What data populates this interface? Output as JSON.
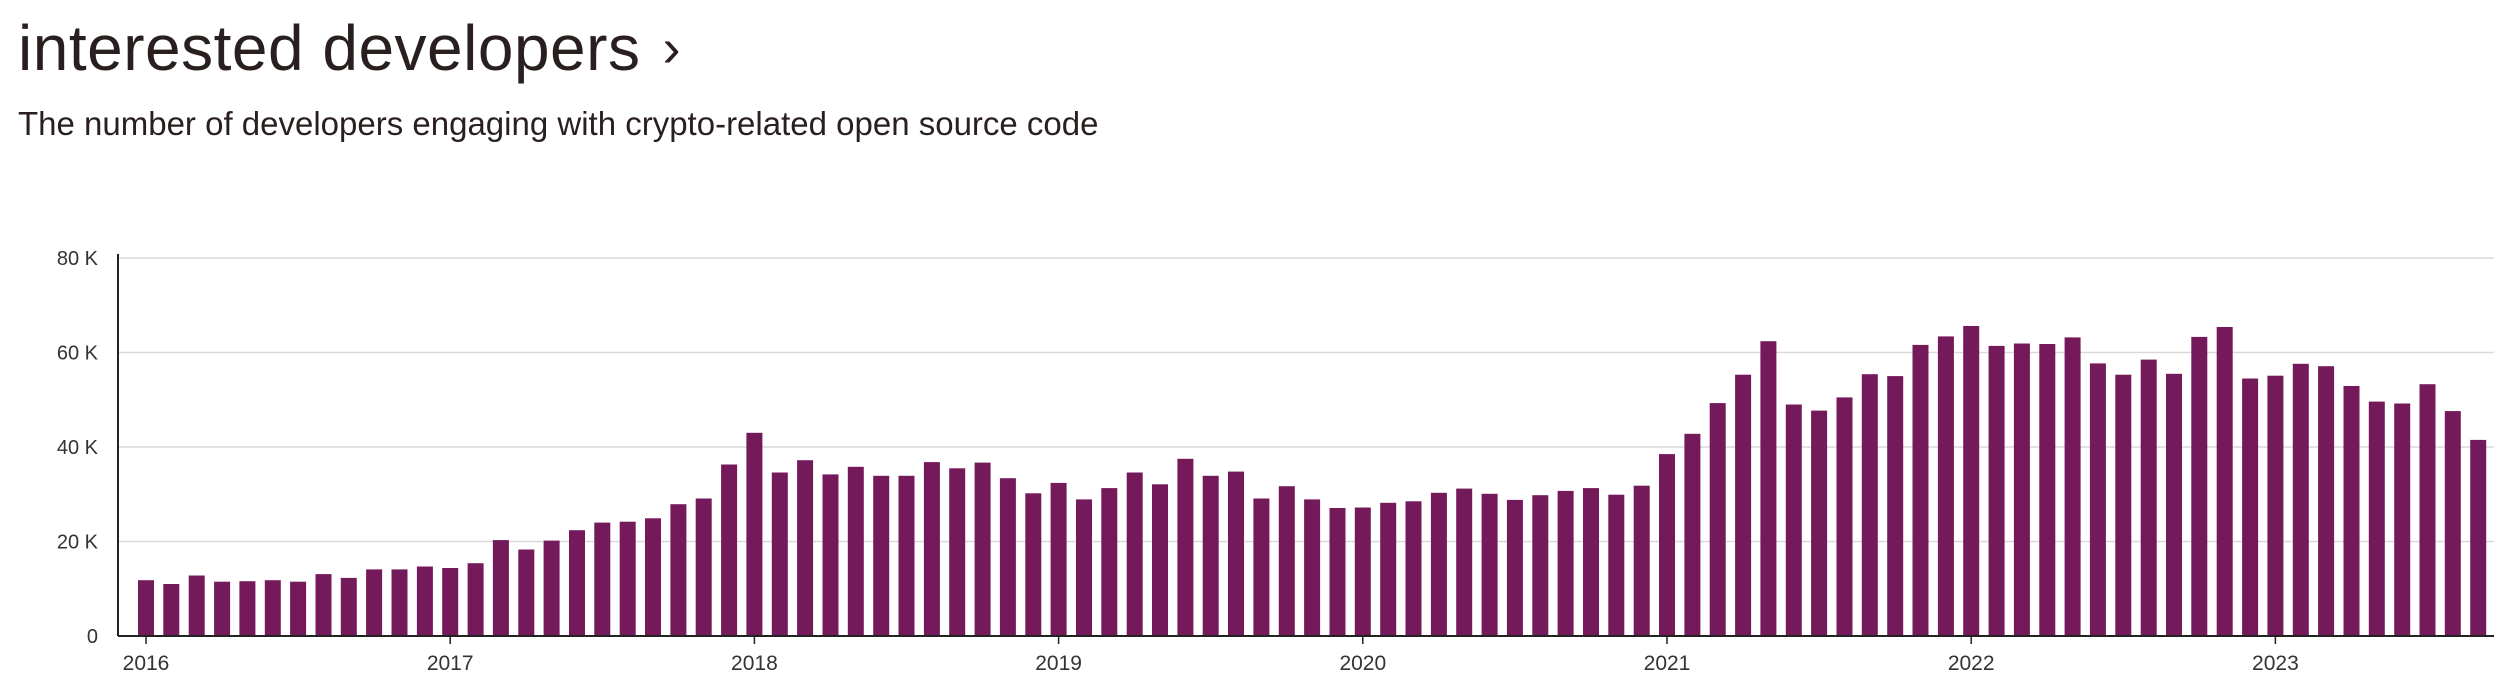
{
  "header": {
    "title": "interested developers",
    "chevron": "›",
    "subtitle": "The number of developers engaging with crypto-related open source code"
  },
  "colors": {
    "bar": "#741a5b",
    "grid": "#d9d9d9",
    "axis": "#222222"
  },
  "chart_data": {
    "type": "bar",
    "title": "interested developers",
    "subtitle": "The number of developers engaging with crypto-related open source code",
    "xlabel": "",
    "ylabel": "",
    "ylim": [
      0,
      80000
    ],
    "yticks": [
      0,
      20000,
      40000,
      60000,
      80000
    ],
    "ytick_labels": [
      "0",
      "20 K",
      "40 K",
      "60 K",
      "80 K"
    ],
    "xtick_labels": [
      "2016",
      "2017",
      "2018",
      "2019",
      "2020",
      "2021",
      "2022",
      "2023"
    ],
    "grid": true,
    "legend": "none",
    "categories": [
      "2016-01",
      "2016-02",
      "2016-03",
      "2016-04",
      "2016-05",
      "2016-06",
      "2016-07",
      "2016-08",
      "2016-09",
      "2016-10",
      "2016-11",
      "2016-12",
      "2017-01",
      "2017-02",
      "2017-03",
      "2017-04",
      "2017-05",
      "2017-06",
      "2017-07",
      "2017-08",
      "2017-09",
      "2017-10",
      "2017-11",
      "2017-12",
      "2018-01",
      "2018-02",
      "2018-03",
      "2018-04",
      "2018-05",
      "2018-06",
      "2018-07",
      "2018-08",
      "2018-09",
      "2018-10",
      "2018-11",
      "2018-12",
      "2019-01",
      "2019-02",
      "2019-03",
      "2019-04",
      "2019-05",
      "2019-06",
      "2019-07",
      "2019-08",
      "2019-09",
      "2019-10",
      "2019-11",
      "2019-12",
      "2020-01",
      "2020-02",
      "2020-03",
      "2020-04",
      "2020-05",
      "2020-06",
      "2020-07",
      "2020-08",
      "2020-09",
      "2020-10",
      "2020-11",
      "2020-12",
      "2021-01",
      "2021-02",
      "2021-03",
      "2021-04",
      "2021-05",
      "2021-06",
      "2021-07",
      "2021-08",
      "2021-09",
      "2021-10",
      "2021-11",
      "2021-12",
      "2022-01",
      "2022-02",
      "2022-03",
      "2022-04",
      "2022-05",
      "2022-06",
      "2022-07",
      "2022-08",
      "2022-09",
      "2022-10",
      "2022-11",
      "2022-12",
      "2023-01",
      "2023-02",
      "2023-03",
      "2023-04",
      "2023-05",
      "2023-06",
      "2023-07",
      "2023-08",
      "2023-09"
    ],
    "values": [
      11800,
      11000,
      12800,
      11500,
      11600,
      11800,
      11500,
      13100,
      12300,
      14100,
      14100,
      14700,
      14400,
      15400,
      20300,
      18300,
      20200,
      22400,
      24000,
      24200,
      24900,
      27900,
      29100,
      36300,
      43000,
      34600,
      37200,
      34200,
      35800,
      33900,
      33900,
      36800,
      35500,
      36700,
      33400,
      30200,
      32400,
      28900,
      31300,
      34600,
      32100,
      37500,
      33900,
      34800,
      29100,
      31700,
      28900,
      27100,
      27200,
      28200,
      28500,
      30300,
      31200,
      30100,
      28800,
      29800,
      30700,
      31300,
      29900,
      31800,
      38500,
      42800,
      49300,
      55300,
      62400,
      49000,
      47700,
      50500,
      55400,
      55000,
      61600,
      63400,
      65600,
      61400,
      61900,
      61800,
      63200,
      57700,
      55300,
      58500,
      55500,
      63300,
      65400,
      54500,
      55100,
      57600,
      57100,
      52900,
      49600,
      49200,
      53300,
      47600,
      41500
    ]
  }
}
